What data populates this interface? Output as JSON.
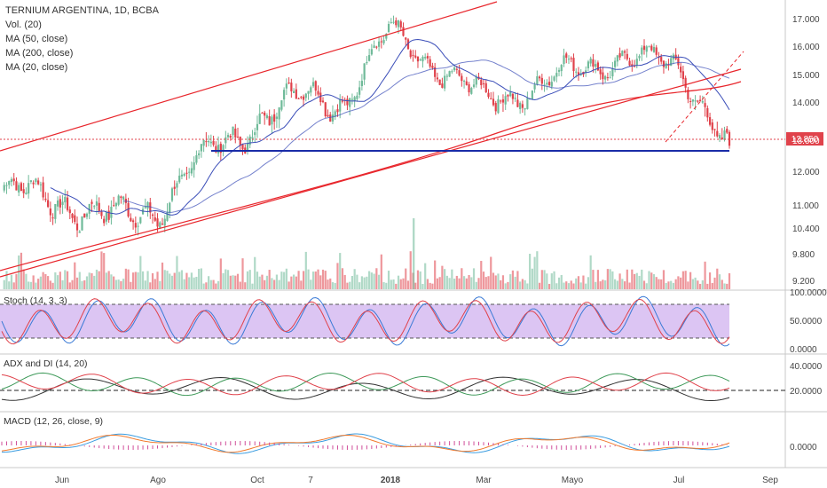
{
  "header": {
    "title": "TERNIUM ARGENTINA, 1D, BCBA",
    "indicators": [
      "Vol. (20)",
      "MA (50, close)",
      "MA (200, close)",
      "MA (20, close)"
    ]
  },
  "panes": {
    "stoch": "Stoch (14, 3, 3)",
    "adx": "ADX and DI (14, 20)",
    "macd": "MACD (12, 26, close, 9)"
  },
  "price_axis": {
    "ticks": [
      "17.000",
      "16.000",
      "15.000",
      "14.000",
      "13.000",
      "12.000",
      "11.000",
      "10.400",
      "9.800",
      "9.200"
    ],
    "last_price": "12.850"
  },
  "stoch_axis": {
    "ticks": [
      "100.0000",
      "50.0000",
      "0.0000"
    ]
  },
  "adx_axis": {
    "ticks": [
      "40.0000",
      "20.0000"
    ]
  },
  "macd_axis": {
    "ticks": [
      "0.0000"
    ]
  },
  "time_axis": {
    "ticks": [
      "Jun",
      "Ago",
      "Oct",
      "7",
      "2018",
      "Mar",
      "Mayo",
      "Jul",
      "Sep"
    ]
  },
  "colors": {
    "up": "#6fba99",
    "down": "#e0424b",
    "trend": "#e8262c",
    "support": "#1a2ca8",
    "ma": "#3a4db8",
    "stoch_bg": "#dcc5f3",
    "stoch_k": "#3a7ad6",
    "stoch_d": "#e0424b",
    "adx": "#333333",
    "di_plus": "#3f9a5a",
    "di_minus": "#e0424b",
    "macd": "#3a9ce0",
    "signal": "#f07a2e",
    "hist": "#d04e9a",
    "last_label": "#e0424b"
  },
  "chart_data": {
    "type": "candlestick",
    "title": "TERNIUM ARGENTINA, 1D, BCBA",
    "x_range": [
      "2017-05",
      "2018-08"
    ],
    "ylim": [
      9.0,
      17.3
    ],
    "last_close": 12.85,
    "support_level": 12.5,
    "close_path": [
      {
        "x": "2017-05",
        "y": 11.4
      },
      {
        "x": "2017-06",
        "y": 11.2
      },
      {
        "x": "2017-07",
        "y": 10.6
      },
      {
        "x": "2017-08",
        "y": 11.0
      },
      {
        "x": "2017-09",
        "y": 12.6
      },
      {
        "x": "2017-10",
        "y": 13.6
      },
      {
        "x": "2017-11",
        "y": 14.3
      },
      {
        "x": "2017-12",
        "y": 14.1
      },
      {
        "x": "2018-01",
        "y": 16.6
      },
      {
        "x": "2018-02",
        "y": 15.2
      },
      {
        "x": "2018-03",
        "y": 14.1
      },
      {
        "x": "2018-04",
        "y": 14.5
      },
      {
        "x": "2018-05",
        "y": 15.1
      },
      {
        "x": "2018-06",
        "y": 15.7
      },
      {
        "x": "2018-07",
        "y": 15.2
      },
      {
        "x": "2018-08",
        "y": 12.85
      }
    ]
  }
}
